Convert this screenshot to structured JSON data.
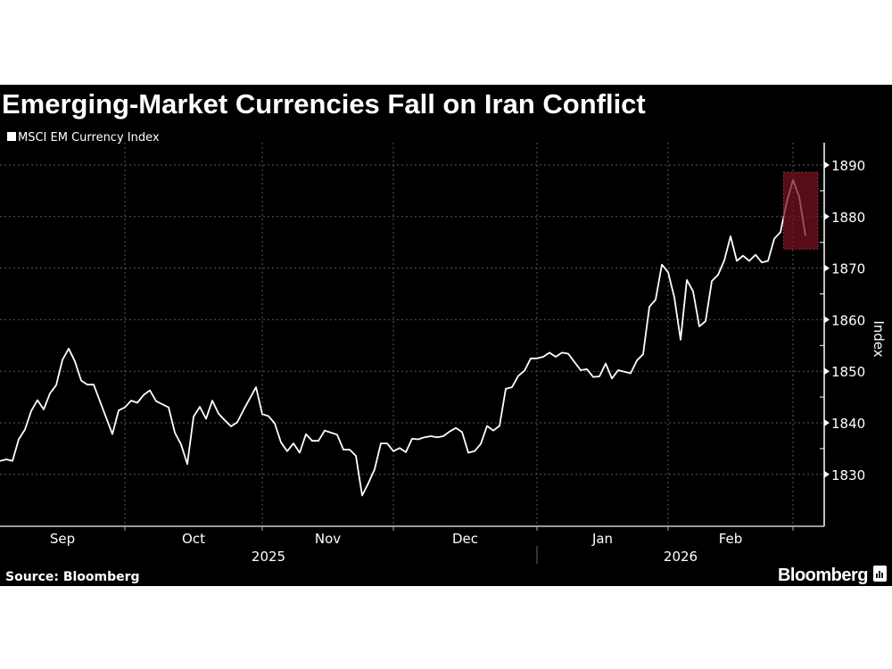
{
  "chart_data": {
    "type": "line",
    "title": "Emerging-Market Currencies Fall on Iran Conflict",
    "ylabel": "Index",
    "xlabel": "",
    "ylim": [
      1820,
      1894
    ],
    "yticks": [
      1830,
      1840,
      1850,
      1860,
      1870,
      1880,
      1890
    ],
    "grid": true,
    "legend_placement": "top-left",
    "x_month_labels": [
      "Sep",
      "Oct",
      "Nov",
      "Dec",
      "Jan",
      "Feb"
    ],
    "x_year_labels": [
      "2025",
      "2026"
    ],
    "series": [
      {
        "name": "MSCI EM Currency Index",
        "color": "#ffffff",
        "points": [
          [
            "2025-09-03",
            1832.6
          ],
          [
            "2025-09-04",
            1832.9
          ],
          [
            "2025-09-05",
            1832.6
          ],
          [
            "2025-09-08",
            1836.8
          ],
          [
            "2025-09-09",
            1838.7
          ],
          [
            "2025-09-10",
            1842.3
          ],
          [
            "2025-09-11",
            1844.4
          ],
          [
            "2025-09-12",
            1842.6
          ],
          [
            "2025-09-15",
            1845.7
          ],
          [
            "2025-09-16",
            1847.3
          ],
          [
            "2025-09-17",
            1852.2
          ],
          [
            "2025-09-18",
            1854.4
          ],
          [
            "2025-09-19",
            1851.9
          ],
          [
            "2025-09-22",
            1848.2
          ],
          [
            "2025-09-23",
            1847.4
          ],
          [
            "2025-09-24",
            1847.4
          ],
          [
            "2025-09-25",
            1844.2
          ],
          [
            "2025-09-26",
            1841.0
          ],
          [
            "2025-09-29",
            1837.8
          ],
          [
            "2025-09-30",
            1842.4
          ],
          [
            "2025-10-01",
            1843.0
          ],
          [
            "2025-10-02",
            1844.3
          ],
          [
            "2025-10-03",
            1843.9
          ],
          [
            "2025-10-06",
            1845.4
          ],
          [
            "2025-10-07",
            1846.3
          ],
          [
            "2025-10-08",
            1844.2
          ],
          [
            "2025-10-09",
            1843.6
          ],
          [
            "2025-10-10",
            1843.0
          ],
          [
            "2025-10-13",
            1838.1
          ],
          [
            "2025-10-14",
            1835.8
          ],
          [
            "2025-10-15",
            1832.0
          ],
          [
            "2025-10-16",
            1841.2
          ],
          [
            "2025-10-17",
            1843.1
          ],
          [
            "2025-10-20",
            1840.8
          ],
          [
            "2025-10-21",
            1844.3
          ],
          [
            "2025-10-22",
            1841.8
          ],
          [
            "2025-10-23",
            1840.5
          ],
          [
            "2025-10-24",
            1839.3
          ],
          [
            "2025-10-27",
            1840.1
          ],
          [
            "2025-10-28",
            1842.5
          ],
          [
            "2025-10-29",
            1844.7
          ],
          [
            "2025-10-30",
            1846.9
          ],
          [
            "2025-10-31",
            1841.7
          ],
          [
            "2025-11-03",
            1841.3
          ],
          [
            "2025-11-04",
            1839.9
          ],
          [
            "2025-11-05",
            1836.2
          ],
          [
            "2025-11-06",
            1834.5
          ],
          [
            "2025-11-07",
            1836.0
          ],
          [
            "2025-11-10",
            1834.2
          ],
          [
            "2025-11-11",
            1837.8
          ],
          [
            "2025-11-12",
            1836.5
          ],
          [
            "2025-11-13",
            1836.5
          ],
          [
            "2025-11-14",
            1838.5
          ],
          [
            "2025-11-17",
            1838.1
          ],
          [
            "2025-11-18",
            1837.7
          ],
          [
            "2025-11-19",
            1834.8
          ],
          [
            "2025-11-20",
            1834.8
          ],
          [
            "2025-11-21",
            1833.6
          ],
          [
            "2025-11-24",
            1825.9
          ],
          [
            "2025-11-25",
            1828.3
          ],
          [
            "2025-11-26",
            1831.0
          ],
          [
            "2025-11-27",
            1836.0
          ],
          [
            "2025-11-28",
            1836.0
          ],
          [
            "2025-12-01",
            1834.5
          ],
          [
            "2025-12-02",
            1835.1
          ],
          [
            "2025-12-03",
            1834.3
          ],
          [
            "2025-12-04",
            1836.9
          ],
          [
            "2025-12-05",
            1836.8
          ],
          [
            "2025-12-08",
            1837.2
          ],
          [
            "2025-12-09",
            1837.4
          ],
          [
            "2025-12-10",
            1837.2
          ],
          [
            "2025-12-11",
            1837.4
          ],
          [
            "2025-12-12",
            1838.3
          ],
          [
            "2025-12-15",
            1839.0
          ],
          [
            "2025-12-16",
            1838.2
          ],
          [
            "2025-12-17",
            1834.2
          ],
          [
            "2025-12-18",
            1834.5
          ],
          [
            "2025-12-19",
            1835.9
          ],
          [
            "2025-12-22",
            1839.4
          ],
          [
            "2025-12-23",
            1838.5
          ],
          [
            "2025-12-24",
            1839.4
          ],
          [
            "2025-12-25",
            1846.6
          ],
          [
            "2025-12-26",
            1846.9
          ],
          [
            "2025-12-29",
            1849.1
          ],
          [
            "2025-12-30",
            1850.1
          ],
          [
            "2025-12-31",
            1852.5
          ],
          [
            "2026-01-01",
            1852.5
          ],
          [
            "2026-01-02",
            1852.8
          ],
          [
            "2026-01-05",
            1853.6
          ],
          [
            "2026-01-06",
            1852.8
          ],
          [
            "2026-01-07",
            1853.6
          ],
          [
            "2026-01-08",
            1853.4
          ],
          [
            "2026-01-09",
            1851.8
          ],
          [
            "2026-01-12",
            1850.2
          ],
          [
            "2026-01-13",
            1850.4
          ],
          [
            "2026-01-14",
            1848.9
          ],
          [
            "2026-01-15",
            1849.0
          ],
          [
            "2026-01-16",
            1851.5
          ],
          [
            "2026-01-19",
            1848.6
          ],
          [
            "2026-01-20",
            1850.2
          ],
          [
            "2026-01-21",
            1849.9
          ],
          [
            "2026-01-22",
            1849.6
          ],
          [
            "2026-01-23",
            1852.1
          ],
          [
            "2026-01-26",
            1853.3
          ],
          [
            "2026-01-27",
            1862.5
          ],
          [
            "2026-01-28",
            1863.9
          ],
          [
            "2026-01-29",
            1870.7
          ],
          [
            "2026-01-30",
            1869.2
          ],
          [
            "2026-02-02",
            1864.3
          ],
          [
            "2026-02-03",
            1856.1
          ],
          [
            "2026-02-04",
            1867.7
          ],
          [
            "2026-02-05",
            1865.5
          ],
          [
            "2026-02-06",
            1858.7
          ],
          [
            "2026-02-09",
            1859.7
          ],
          [
            "2026-02-10",
            1867.5
          ],
          [
            "2026-02-11",
            1868.7
          ],
          [
            "2026-02-12",
            1871.5
          ],
          [
            "2026-02-13",
            1876.2
          ],
          [
            "2026-02-16",
            1871.4
          ],
          [
            "2026-02-17",
            1872.4
          ],
          [
            "2026-02-18",
            1871.4
          ],
          [
            "2026-02-19",
            1872.6
          ],
          [
            "2026-02-20",
            1871.1
          ],
          [
            "2026-02-23",
            1871.4
          ],
          [
            "2026-02-24",
            1875.7
          ],
          [
            "2026-02-25",
            1877.0
          ],
          [
            "2026-02-26",
            1882.8
          ],
          [
            "2026-02-27",
            1887.1
          ],
          [
            "2026-03-02",
            1883.8
          ],
          [
            "2026-03-03",
            1876.3
          ]
        ]
      }
    ],
    "highlight": {
      "x_start": "2026-02-26",
      "x_end": "2026-03-03",
      "y_range": [
        1873.7,
        1888.6
      ],
      "color": "#7a1020"
    },
    "colors": {
      "background": "#000000",
      "grid": "#5a5a5a",
      "line": "#ffffff"
    }
  },
  "footer": {
    "source": "Source: Bloomberg",
    "brand": "Bloomberg"
  }
}
